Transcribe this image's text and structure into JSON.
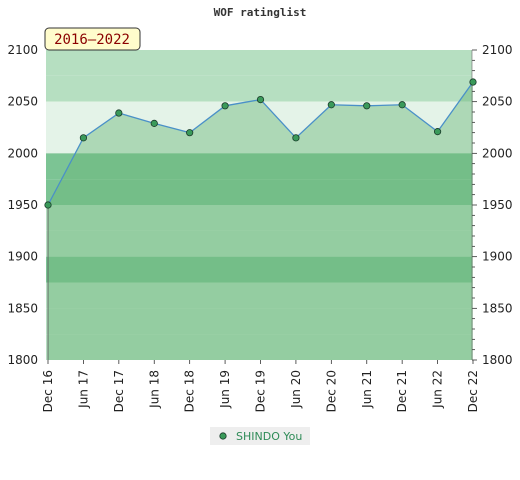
{
  "chart_data": {
    "type": "area",
    "title": "WOF ratinglist",
    "period_label": "2016–2022",
    "categories": [
      "Dec 16",
      "Jun 17",
      "Dec 17",
      "Jun 18",
      "Dec 18",
      "Jun 19",
      "Dec 19",
      "Jun 20",
      "Dec 20",
      "Jun 21",
      "Dec 21",
      "Jun 22",
      "Dec 22"
    ],
    "series": [
      {
        "name": "SHINDO You",
        "values": [
          1950,
          2015,
          2039,
          2029,
          2020,
          2046,
          2052,
          2015,
          2047,
          2046,
          2047,
          2021,
          2069
        ]
      }
    ],
    "ylim": [
      1800,
      2100
    ],
    "yticks": [
      1800,
      1850,
      1900,
      1950,
      2000,
      2050,
      2100
    ],
    "legend": "bottom-center",
    "grid": true,
    "colors": {
      "line": "#4a90c8",
      "marker": "#3a9a5a",
      "area": "#6ab97a",
      "band_light": "#e4f3e8",
      "band_mid": "#b6dfc1",
      "band_dark": "#7cc494",
      "badge_bg": "#fffccc"
    }
  }
}
